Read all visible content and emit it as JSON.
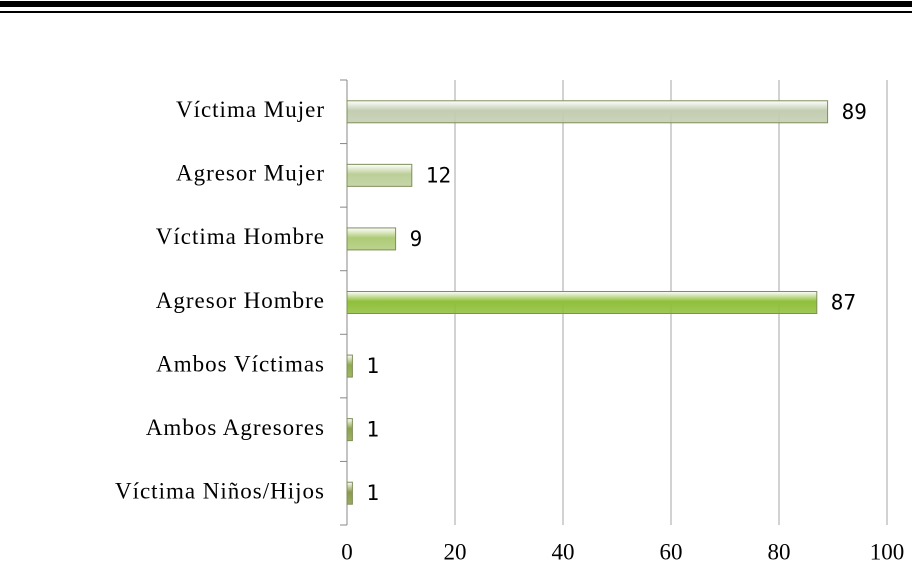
{
  "chart_data": {
    "type": "bar",
    "orientation": "horizontal",
    "categories": [
      "Víctima Mujer",
      "Agresor Mujer",
      "Víctima Hombre",
      "Agresor Hombre",
      "Ambos Víctimas",
      "Ambos Agresores",
      "Víctima Niños/Hijos"
    ],
    "values": [
      89,
      12,
      9,
      87,
      1,
      1,
      1
    ],
    "colors": [
      "#c3cdb0",
      "#bccf98",
      "#aecb78",
      "#8fbf3a",
      "#8faa4e",
      "#8ea24e",
      "#8a9a4c"
    ],
    "xlim": [
      0,
      100
    ],
    "xticks": [
      0,
      20,
      40,
      60,
      80,
      100
    ],
    "grid": true
  }
}
